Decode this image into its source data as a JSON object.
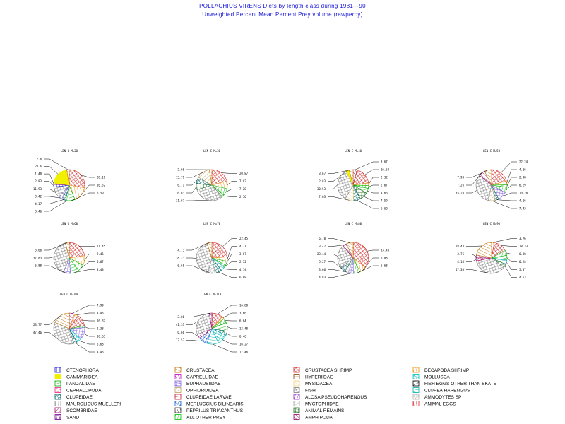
{
  "title": "POLLACHIUS VIRENS Diets by length class during 1981—90",
  "subtitle": "Unweighted Percent Mean Percent Prey  volume (rawperpy)",
  "chart_data": {
    "type": "pie",
    "legend_placement": "bottom",
    "categories": [
      {
        "name": "CTENOPHORA",
        "color": "#1010d0"
      },
      {
        "name": "GAMMARIDEA",
        "color": "#f0f000"
      },
      {
        "name": "PANDALIDAE",
        "color": "#00b000"
      },
      {
        "name": "CEPHALOPODA",
        "color": "#f02080"
      },
      {
        "name": "CLUPEIDAE",
        "color": "#006060"
      },
      {
        "name": "MAUROLICUS MUELLERI",
        "color": "#909090"
      },
      {
        "name": "SCOMBRIDAE",
        "color": "#a00060"
      },
      {
        "name": "SAND",
        "color": "#700090"
      },
      {
        "name": "CRUSTACEA",
        "color": "#c07000"
      },
      {
        "name": "CAPRELLIDAE",
        "color": "#c000c0"
      },
      {
        "name": "EUPHAUSIIDAE",
        "color": "#8060e0"
      },
      {
        "name": "OPHIUROIDEA",
        "color": "#c0a060"
      },
      {
        "name": "CLUPEIDAE LARVAE",
        "color": "#c01030"
      },
      {
        "name": "MERLUCCIUS BILINEARIS",
        "color": "#1060d0"
      },
      {
        "name": "PEPRILUS TRIACANTHUS",
        "color": "#303030"
      },
      {
        "name": "ALL OTHER PREY",
        "color": "#00c000"
      },
      {
        "name": "CRUSTACEA SHRIMP",
        "color": "#d02020"
      },
      {
        "name": "HYPERIIDAE",
        "color": "#804000"
      },
      {
        "name": "MYSIDACEA",
        "color": "#f0d080"
      },
      {
        "name": "FISH",
        "color": "#808080"
      },
      {
        "name": "ALOSA PSEUDOHARENGUS",
        "color": "#9020c0"
      },
      {
        "name": "MYCTOPHIDAE",
        "color": "#a0a0a0"
      },
      {
        "name": "ANIMAL REMAINS",
        "color": "#207020"
      },
      {
        "name": "AMPHIPODA",
        "color": "#900060"
      },
      {
        "name": "DECAPODA SHRIMP",
        "color": "#f09000"
      },
      {
        "name": "MOLLUSCA",
        "color": "#00c0c0"
      },
      {
        "name": "FISH EGGS OTHER THAN SKATE",
        "color": "#000000"
      },
      {
        "name": "CLUPEA HARENGUS",
        "color": "#00b0b0"
      },
      {
        "name": "AMMODYTES SP",
        "color": "#b0b0b0"
      },
      {
        "name": "ANIMAL EGGS",
        "color": "#e02020"
      }
    ],
    "pies": [
      {
        "title": "LEN C M=20",
        "slices": [
          {
            "label": "28.19",
            "value": 28.19,
            "cat": "CRUSTACEA SHRIMP"
          },
          {
            "label": "16.52",
            "value": 16.52,
            "cat": "DECAPODA SHRIMP"
          },
          {
            "label": "6.59",
            "value": 6.59,
            "cat": "PANDALIDAE"
          },
          {
            "label": "3.46",
            "value": 3.46,
            "cat": "ALL OTHER PREY"
          },
          {
            "label": "4.17",
            "value": 4.17,
            "cat": "CLUPEIDAE"
          },
          {
            "label": "3.42",
            "value": 3.42,
            "cat": "EUPHAUSIIDAE"
          },
          {
            "label": "11.93",
            "value": 11.93,
            "cat": "FISH"
          },
          {
            "label": "2.83",
            "value": 2.83,
            "cat": "CTENOPHORA"
          },
          {
            "label": "1.40",
            "value": 1.4,
            "cat": "AMPHIPODA"
          },
          {
            "label": "20.6",
            "value": 20.6,
            "cat": "GAMMARIDEA"
          },
          {
            "label": "2.6",
            "value": 2.6,
            "cat": "CRUSTACEA"
          }
        ]
      },
      {
        "title": "LEN C M=30",
        "slices": [
          {
            "label": "20.87",
            "value": 20.87,
            "cat": "CRUSTACEA SHRIMP"
          },
          {
            "label": "7.82",
            "value": 7.82,
            "cat": "DECAPODA SHRIMP"
          },
          {
            "label": "7.28",
            "value": 7.28,
            "cat": "ALL OTHER PREY"
          },
          {
            "label": "2.56",
            "value": 2.56,
            "cat": "PANDALIDAE"
          },
          {
            "label": "31.67",
            "value": 31.67,
            "cat": "FISH"
          },
          {
            "label": "6.63",
            "value": 6.63,
            "cat": "ANIMAL REMAINS"
          },
          {
            "label": "6.71",
            "value": 6.71,
            "cat": "CLUPEIDAE"
          },
          {
            "label": "13.79",
            "value": 13.79,
            "cat": "OPHIUROIDEA"
          },
          {
            "label": "2.66",
            "value": 2.66,
            "cat": "CRUSTACEA"
          }
        ]
      },
      {
        "title": "LEN C M=40",
        "slices": [
          {
            "label": "3.67",
            "value": 3.67,
            "cat": "AMPHIPODA"
          },
          {
            "label": "16.58",
            "value": 16.58,
            "cat": "CRUSTACEA SHRIMP"
          },
          {
            "label": "2.32",
            "value": 2.32,
            "cat": "DECAPODA SHRIMP"
          },
          {
            "label": "2.67",
            "value": 2.67,
            "cat": "ALL OTHER PREY"
          },
          {
            "label": "4.66",
            "value": 4.66,
            "cat": "PANDALIDAE"
          },
          {
            "label": "7.59",
            "value": 7.59,
            "cat": "ANIMAL REMAINS"
          },
          {
            "label": "6.68",
            "value": 6.68,
            "cat": "CLUPEIDAE"
          },
          {
            "label": "7.63",
            "value": 7.63,
            "cat": "MYSIDACEA"
          },
          {
            "label": "30.53",
            "value": 30.53,
            "cat": "FISH"
          },
          {
            "label": "2.83",
            "value": 2.83,
            "cat": "GAMMARIDEA"
          },
          {
            "label": "3.67",
            "value": 3.67,
            "cat": "CRUSTACEA"
          }
        ]
      },
      {
        "title": "LEN C M=50",
        "slices": [
          {
            "label": "22.24",
            "value": 22.24,
            "cat": "CRUSTACEA SHRIMP"
          },
          {
            "label": "4.16",
            "value": 4.16,
            "cat": "DECAPODA SHRIMP"
          },
          {
            "label": "2.88",
            "value": 2.88,
            "cat": "PANDALIDAE"
          },
          {
            "label": "6.29",
            "value": 6.29,
            "cat": "ALL OTHER PREY"
          },
          {
            "label": "10.28",
            "value": 10.28,
            "cat": "EUPHAUSIIDAE"
          },
          {
            "label": "4.16",
            "value": 4.16,
            "cat": "CLUPEIDAE"
          },
          {
            "label": "7.43",
            "value": 7.43,
            "cat": "OPHIUROIDEA"
          },
          {
            "label": "35.28",
            "value": 35.28,
            "cat": "FISH"
          },
          {
            "label": "7.26",
            "value": 7.26,
            "cat": "AMPHIPODA"
          },
          {
            "label": "7.93",
            "value": 7.93,
            "cat": "CRUSTACEA"
          }
        ]
      },
      {
        "title": "LEN C M=60",
        "slices": [
          {
            "label": "21.45",
            "value": 21.45,
            "cat": "CRUSTACEA SHRIMP"
          },
          {
            "label": "9.46",
            "value": 9.46,
            "cat": "DECAPODA SHRIMP"
          },
          {
            "label": "6.67",
            "value": 6.67,
            "cat": "ALL OTHER PREY"
          },
          {
            "label": "8.43",
            "value": 8.43,
            "cat": "PANDALIDAE"
          },
          {
            "label": "6.88",
            "value": 6.88,
            "cat": "EUPHAUSIIDAE"
          },
          {
            "label": "37.83",
            "value": 37.83,
            "cat": "FISH"
          },
          {
            "label": "3.66",
            "value": 3.66,
            "cat": "CRUSTACEA"
          }
        ]
      },
      {
        "title": "LEN C M=70",
        "slices": [
          {
            "label": "22.45",
            "value": 22.45,
            "cat": "CRUSTACEA SHRIMP"
          },
          {
            "label": "4.31",
            "value": 4.31,
            "cat": "DECAPODA SHRIMP"
          },
          {
            "label": "3.87",
            "value": 3.87,
            "cat": "ALL OTHER PREY"
          },
          {
            "label": "2.32",
            "value": 2.32,
            "cat": "PANDALIDAE"
          },
          {
            "label": "4.14",
            "value": 4.14,
            "cat": "CLUPEA HARENGUS"
          },
          {
            "label": "6.88",
            "value": 6.88,
            "cat": "CLUPEIDAE"
          },
          {
            "label": "6.68",
            "value": 6.68,
            "cat": "AMMODYTES SP"
          },
          {
            "label": "38.23",
            "value": 38.23,
            "cat": "FISH"
          },
          {
            "label": "4.73",
            "value": 4.73,
            "cat": "CRUSTACEA"
          }
        ]
      },
      {
        "title": "LEN C M=80",
        "slices": [
          {
            "label": "33.43",
            "value": 33.43,
            "cat": "CRUSTACEA SHRIMP"
          },
          {
            "label": "6.88",
            "value": 6.88,
            "cat": "DECAPODA SHRIMP"
          },
          {
            "label": "6.68",
            "value": 6.68,
            "cat": "ALL OTHER PREY"
          },
          {
            "label": "4.83",
            "value": 4.83,
            "cat": "EUPHAUSIIDAE"
          },
          {
            "label": "3.66",
            "value": 3.66,
            "cat": "AMMODYTES SP"
          },
          {
            "label": "5.27",
            "value": 5.27,
            "cat": "CLUPEIDAE"
          },
          {
            "label": "23.44",
            "value": 23.44,
            "cat": "FISH"
          },
          {
            "label": "3.47",
            "value": 3.47,
            "cat": "AMPHIPODA"
          },
          {
            "label": "6.78",
            "value": 6.78,
            "cat": "CRUSTACEA"
          }
        ]
      },
      {
        "title": "LEN C M=90",
        "slices": [
          {
            "label": "3.76",
            "value": 3.76,
            "cat": "DECAPODA SHRIMP"
          },
          {
            "label": "18.33",
            "value": 18.33,
            "cat": "CRUSTACEA SHRIMP"
          },
          {
            "label": "6.88",
            "value": 6.88,
            "cat": "ALL OTHER PREY"
          },
          {
            "label": "6.28",
            "value": 6.28,
            "cat": "PANDALIDAE"
          },
          {
            "label": "5.87",
            "value": 5.87,
            "cat": "CLUPEA HARENGUS"
          },
          {
            "label": "4.63",
            "value": 4.63,
            "cat": "ANIMAL REMAINS"
          },
          {
            "label": "47.38",
            "value": 47.38,
            "cat": "FISH"
          },
          {
            "label": "4.16",
            "value": 4.16,
            "cat": "SCOMBRIDAE"
          },
          {
            "label": "3.76",
            "value": 3.76,
            "cat": "AMPHIPODA"
          },
          {
            "label": "28.43",
            "value": 28.43,
            "cat": "CRUSTACEA"
          }
        ]
      },
      {
        "title": "LEN C M=100",
        "slices": [
          {
            "label": "7.99",
            "value": 7.99,
            "cat": "AMPHIPODA"
          },
          {
            "label": "4.43",
            "value": 4.43,
            "cat": "DECAPODA SHRIMP"
          },
          {
            "label": "16.37",
            "value": 16.37,
            "cat": "CRUSTACEA SHRIMP"
          },
          {
            "label": "2.38",
            "value": 2.38,
            "cat": "ALL OTHER PREY"
          },
          {
            "label": "16.63",
            "value": 16.63,
            "cat": "EUPHAUSIIDAE"
          },
          {
            "label": "6.68",
            "value": 6.68,
            "cat": "MOLLUSCA"
          },
          {
            "label": "4.43",
            "value": 4.43,
            "cat": "CLUPEIDAE"
          },
          {
            "label": "47.46",
            "value": 47.46,
            "cat": "FISH"
          },
          {
            "label": "23.77",
            "value": 23.77,
            "cat": "CRUSTACEA"
          }
        ]
      },
      {
        "title": "LEN C M=110",
        "slices": [
          {
            "label": "16.88",
            "value": 16.88,
            "cat": "CRUSTACEA SHRIMP"
          },
          {
            "label": "3.66",
            "value": 3.66,
            "cat": "DECAPODA SHRIMP"
          },
          {
            "label": "6.64",
            "value": 6.64,
            "cat": "ALL OTHER PREY"
          },
          {
            "label": "13.48",
            "value": 13.48,
            "cat": "PANDALIDAE"
          },
          {
            "label": "6.46",
            "value": 6.46,
            "cat": "CLUPEIDAE"
          },
          {
            "label": "16.27",
            "value": 16.27,
            "cat": "MOLLUSCA"
          },
          {
            "label": "17.46",
            "value": 17.46,
            "cat": "CLUPEA HARENGUS"
          },
          {
            "label": "13.53",
            "value": 13.53,
            "cat": "MERLUCCIUS BILINEARIS"
          },
          {
            "label": "6.66",
            "value": 6.66,
            "cat": "SCOMBRIDAE"
          },
          {
            "label": "41.53",
            "value": 41.53,
            "cat": "FISH"
          },
          {
            "label": "3.86",
            "value": 3.86,
            "cat": "AMPHIPODA"
          }
        ]
      }
    ]
  }
}
